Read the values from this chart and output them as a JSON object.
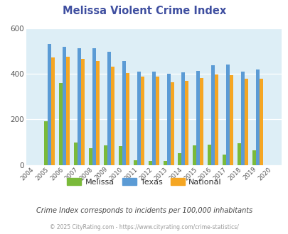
{
  "title": "Melissa Violent Crime Index",
  "years": [
    2004,
    2005,
    2006,
    2007,
    2008,
    2009,
    2010,
    2011,
    2012,
    2013,
    2014,
    2015,
    2016,
    2017,
    2018,
    2019,
    2020
  ],
  "melissa": [
    null,
    193,
    358,
    97,
    75,
    87,
    83,
    20,
    17,
    17,
    52,
    85,
    90,
    45,
    95,
    65,
    null
  ],
  "texas": [
    null,
    530,
    518,
    513,
    512,
    495,
    455,
    410,
    410,
    400,
    405,
    413,
    436,
    440,
    410,
    420,
    null
  ],
  "national": [
    null,
    470,
    474,
    465,
    455,
    430,
    402,
    387,
    387,
    363,
    370,
    382,
    398,
    395,
    379,
    377,
    null
  ],
  "melissa_color": "#7aba3a",
  "texas_color": "#5b9bd5",
  "national_color": "#f5a623",
  "bg_color": "#ddeef6",
  "ylim": [
    0,
    600
  ],
  "yticks": [
    0,
    200,
    400,
    600
  ],
  "title_color": "#3f4fa0",
  "subtitle": "Crime Index corresponds to incidents per 100,000 inhabitants",
  "footer": "© 2025 CityRating.com - https://www.cityrating.com/crime-statistics/",
  "subtitle_color": "#444444",
  "footer_color": "#999999"
}
